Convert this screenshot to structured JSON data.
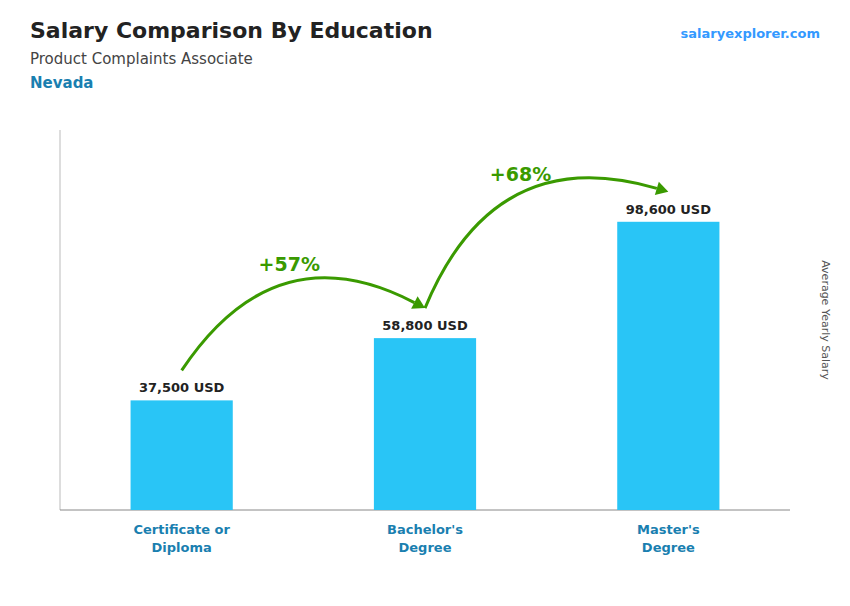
{
  "chart_data": {
    "type": "bar",
    "title": "Salary Comparison By Education",
    "subtitle": "Product Complaints Associate",
    "location": "Nevada",
    "watermark": "salaryexplorer.com",
    "ylabel": "Average Yearly Salary",
    "categories": [
      "Certificate or\nDiploma",
      "Bachelor's\nDegree",
      "Master's\nDegree"
    ],
    "values": [
      37500,
      58800,
      98600
    ],
    "value_labels": [
      "37,500 USD",
      "58,800 USD",
      "98,600 USD"
    ],
    "data_labels": true,
    "annotations": [
      "+57%",
      "+68%"
    ],
    "color": "#29c5f6",
    "ylim": [
      0,
      130000
    ],
    "yticks": [],
    "tick_labels": "x",
    "grid": false
  }
}
